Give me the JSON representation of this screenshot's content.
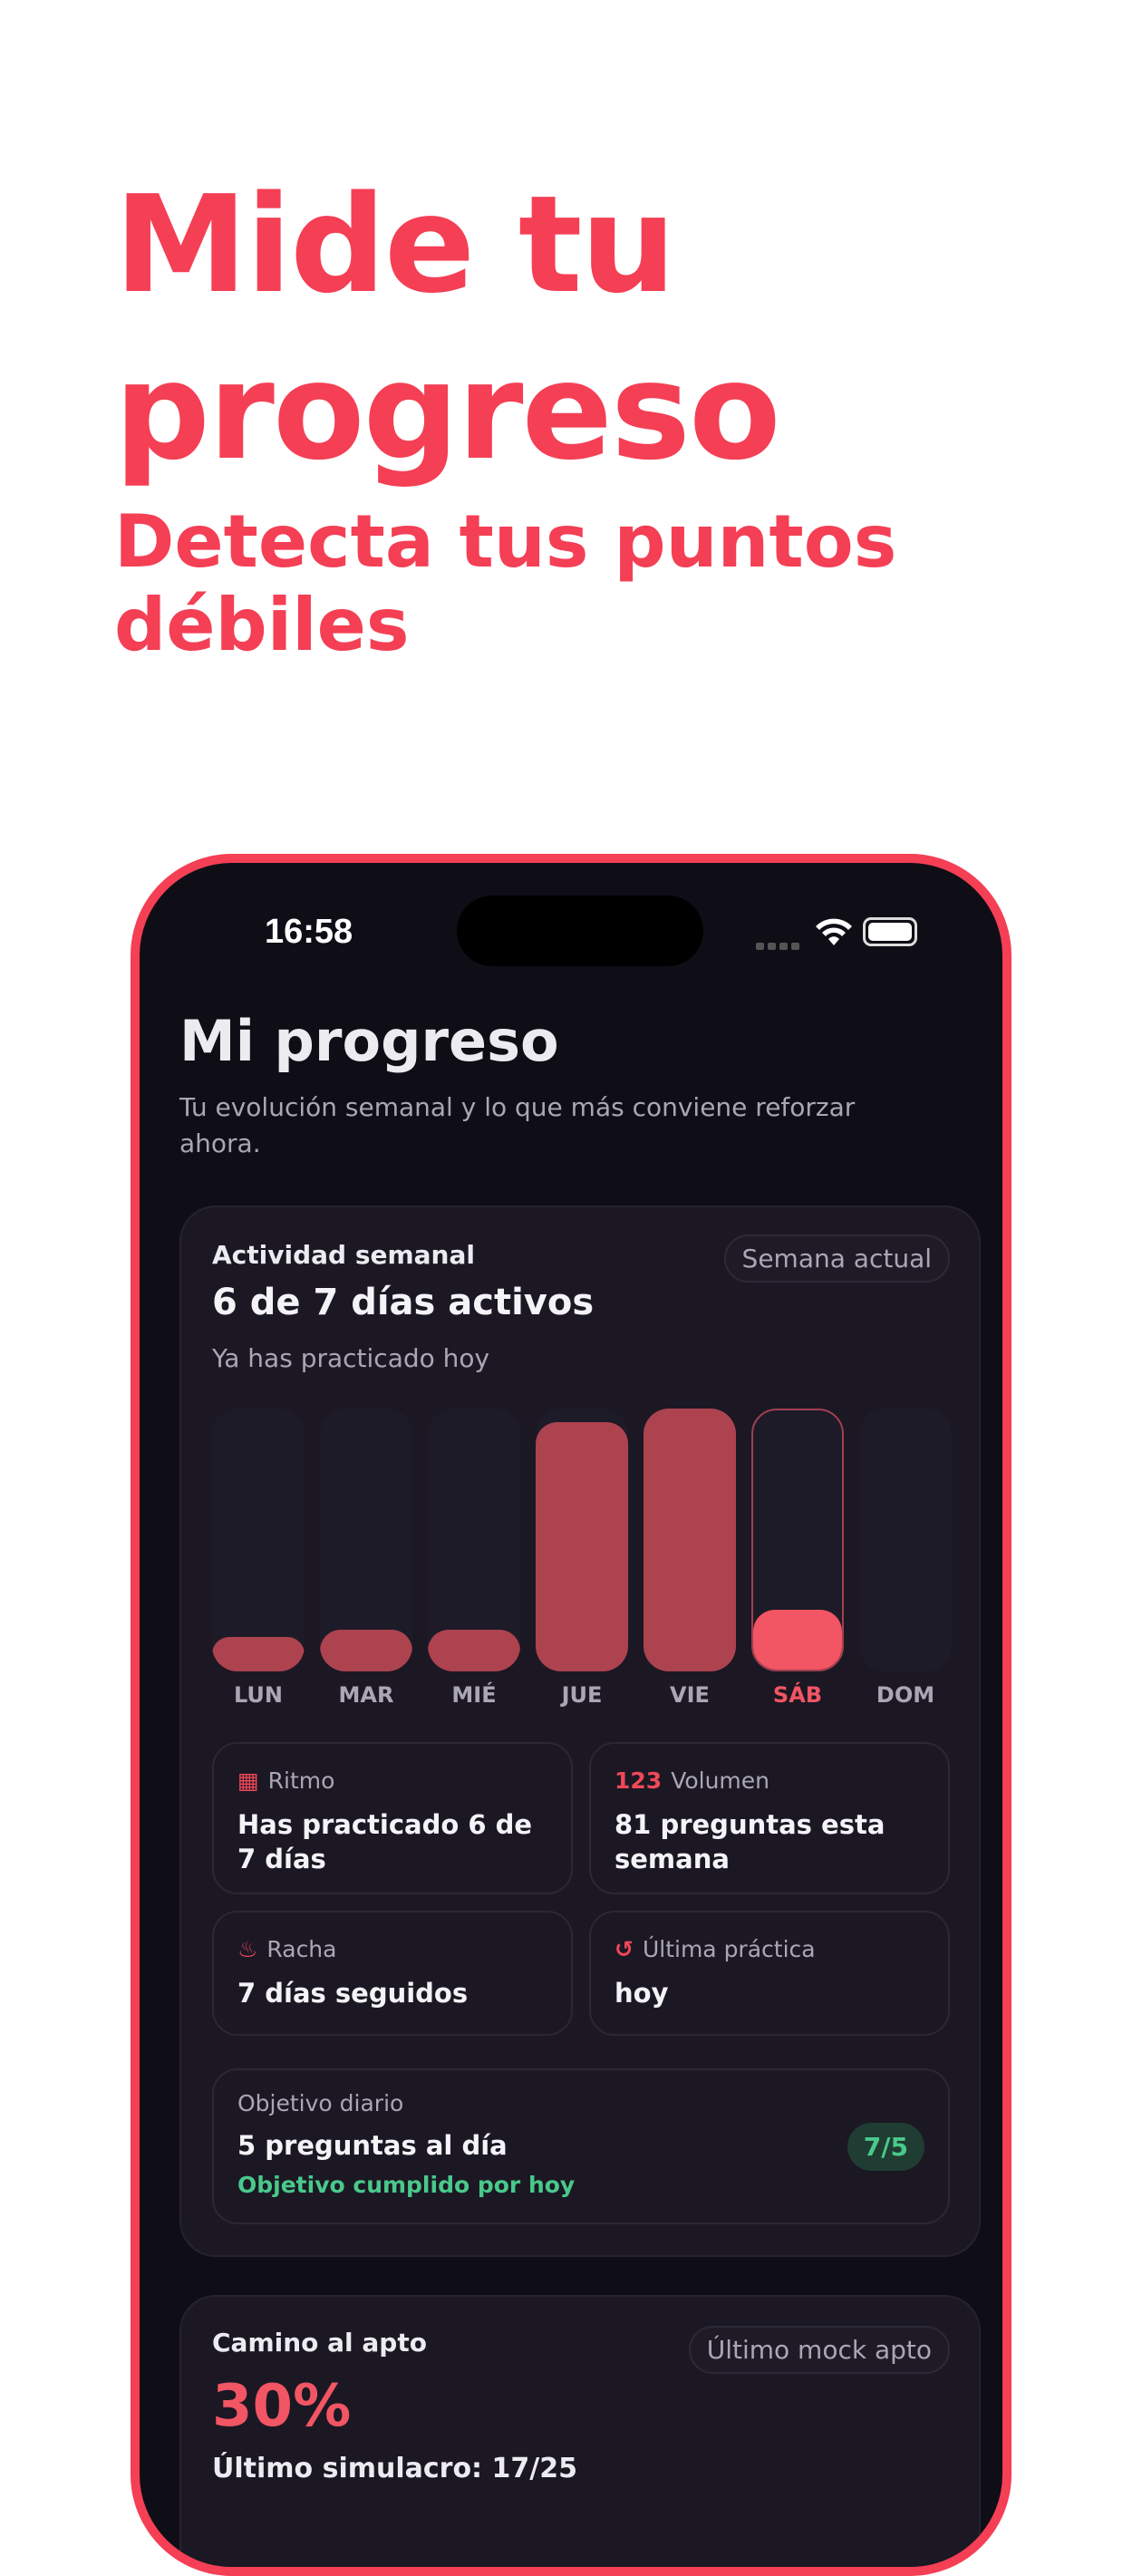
{
  "headline": {
    "title": "Mide tu progreso",
    "subtitle": "Detecta tus puntos débiles"
  },
  "status_bar": {
    "time": "16:58"
  },
  "page": {
    "title": "Mi progreso",
    "subtitle": "Tu evolución semanal y lo que más conviene reforzar ahora."
  },
  "weekly": {
    "label": "Actividad semanal",
    "headline": "6 de 7 días activos",
    "note": "Ya has practicado hoy",
    "pill": "Semana actual",
    "days": [
      {
        "label": "LUN",
        "fill_pct": 13
      },
      {
        "label": "MAR",
        "fill_pct": 16
      },
      {
        "label": "MIÉ",
        "fill_pct": 16
      },
      {
        "label": "JUE",
        "fill_pct": 95
      },
      {
        "label": "VIE",
        "fill_pct": 100
      },
      {
        "label": "SÁB",
        "fill_pct": 23,
        "today": true
      },
      {
        "label": "DOM",
        "fill_pct": 0
      }
    ],
    "colors": {
      "bar": "#ad434f",
      "today": "#f25563",
      "accent": "#f43f55",
      "success": "#49c98a"
    }
  },
  "stats": [
    {
      "icon": "calendar-icon",
      "label": "Ritmo",
      "value": "Has practicado 6 de 7 días"
    },
    {
      "icon": "123-icon",
      "icon_text": "123",
      "label": "Volumen",
      "value": "81 preguntas esta semana"
    },
    {
      "icon": "flame-icon",
      "label": "Racha",
      "value": "7 días seguidos"
    },
    {
      "icon": "history-icon",
      "label": "Última práctica",
      "value": "hoy"
    }
  ],
  "goal": {
    "label": "Objetivo diario",
    "value": "5 preguntas al día",
    "status": "Objetivo cumplido por hoy",
    "badge": "7/5"
  },
  "apto": {
    "label": "Camino al apto",
    "percent": "30%",
    "pill": "Último mock apto",
    "last": "Último simulacro: 17/25"
  }
}
